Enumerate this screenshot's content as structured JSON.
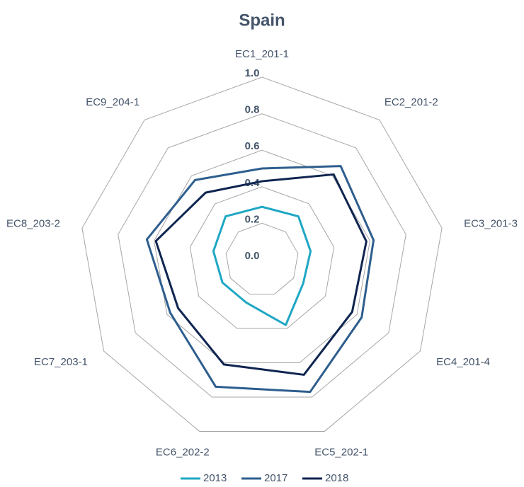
{
  "chart_data": {
    "type": "radar",
    "title": "Spain",
    "categories": [
      "EC1_201-1",
      "EC2_201-2",
      "EC3_201-3",
      "EC4_201-4",
      "EC5_202-1",
      "EC6_202-2",
      "EC7_203-1",
      "EC8_203-2",
      "EC9_204-1"
    ],
    "series": [
      {
        "name": "2013",
        "color": "#1fa7c4",
        "values": [
          0.29,
          0.31,
          0.27,
          0.26,
          0.38,
          0.25,
          0.25,
          0.27,
          0.31
        ]
      },
      {
        "name": "2017",
        "color": "#2e5e8e",
        "values": [
          0.5,
          0.67,
          0.62,
          0.63,
          0.77,
          0.74,
          0.58,
          0.64,
          0.57
        ]
      },
      {
        "name": "2018",
        "color": "#0f2550",
        "values": [
          0.43,
          0.61,
          0.58,
          0.57,
          0.67,
          0.61,
          0.53,
          0.59,
          0.48
        ]
      }
    ],
    "ylim": [
      0,
      1
    ],
    "yticks": [
      {
        "value": 0,
        "label": "0.0"
      },
      0.2,
      0.4,
      0.6,
      0.8,
      {
        "value": 1,
        "label": "1.0"
      }
    ],
    "grid": true,
    "legend": "bottom"
  }
}
